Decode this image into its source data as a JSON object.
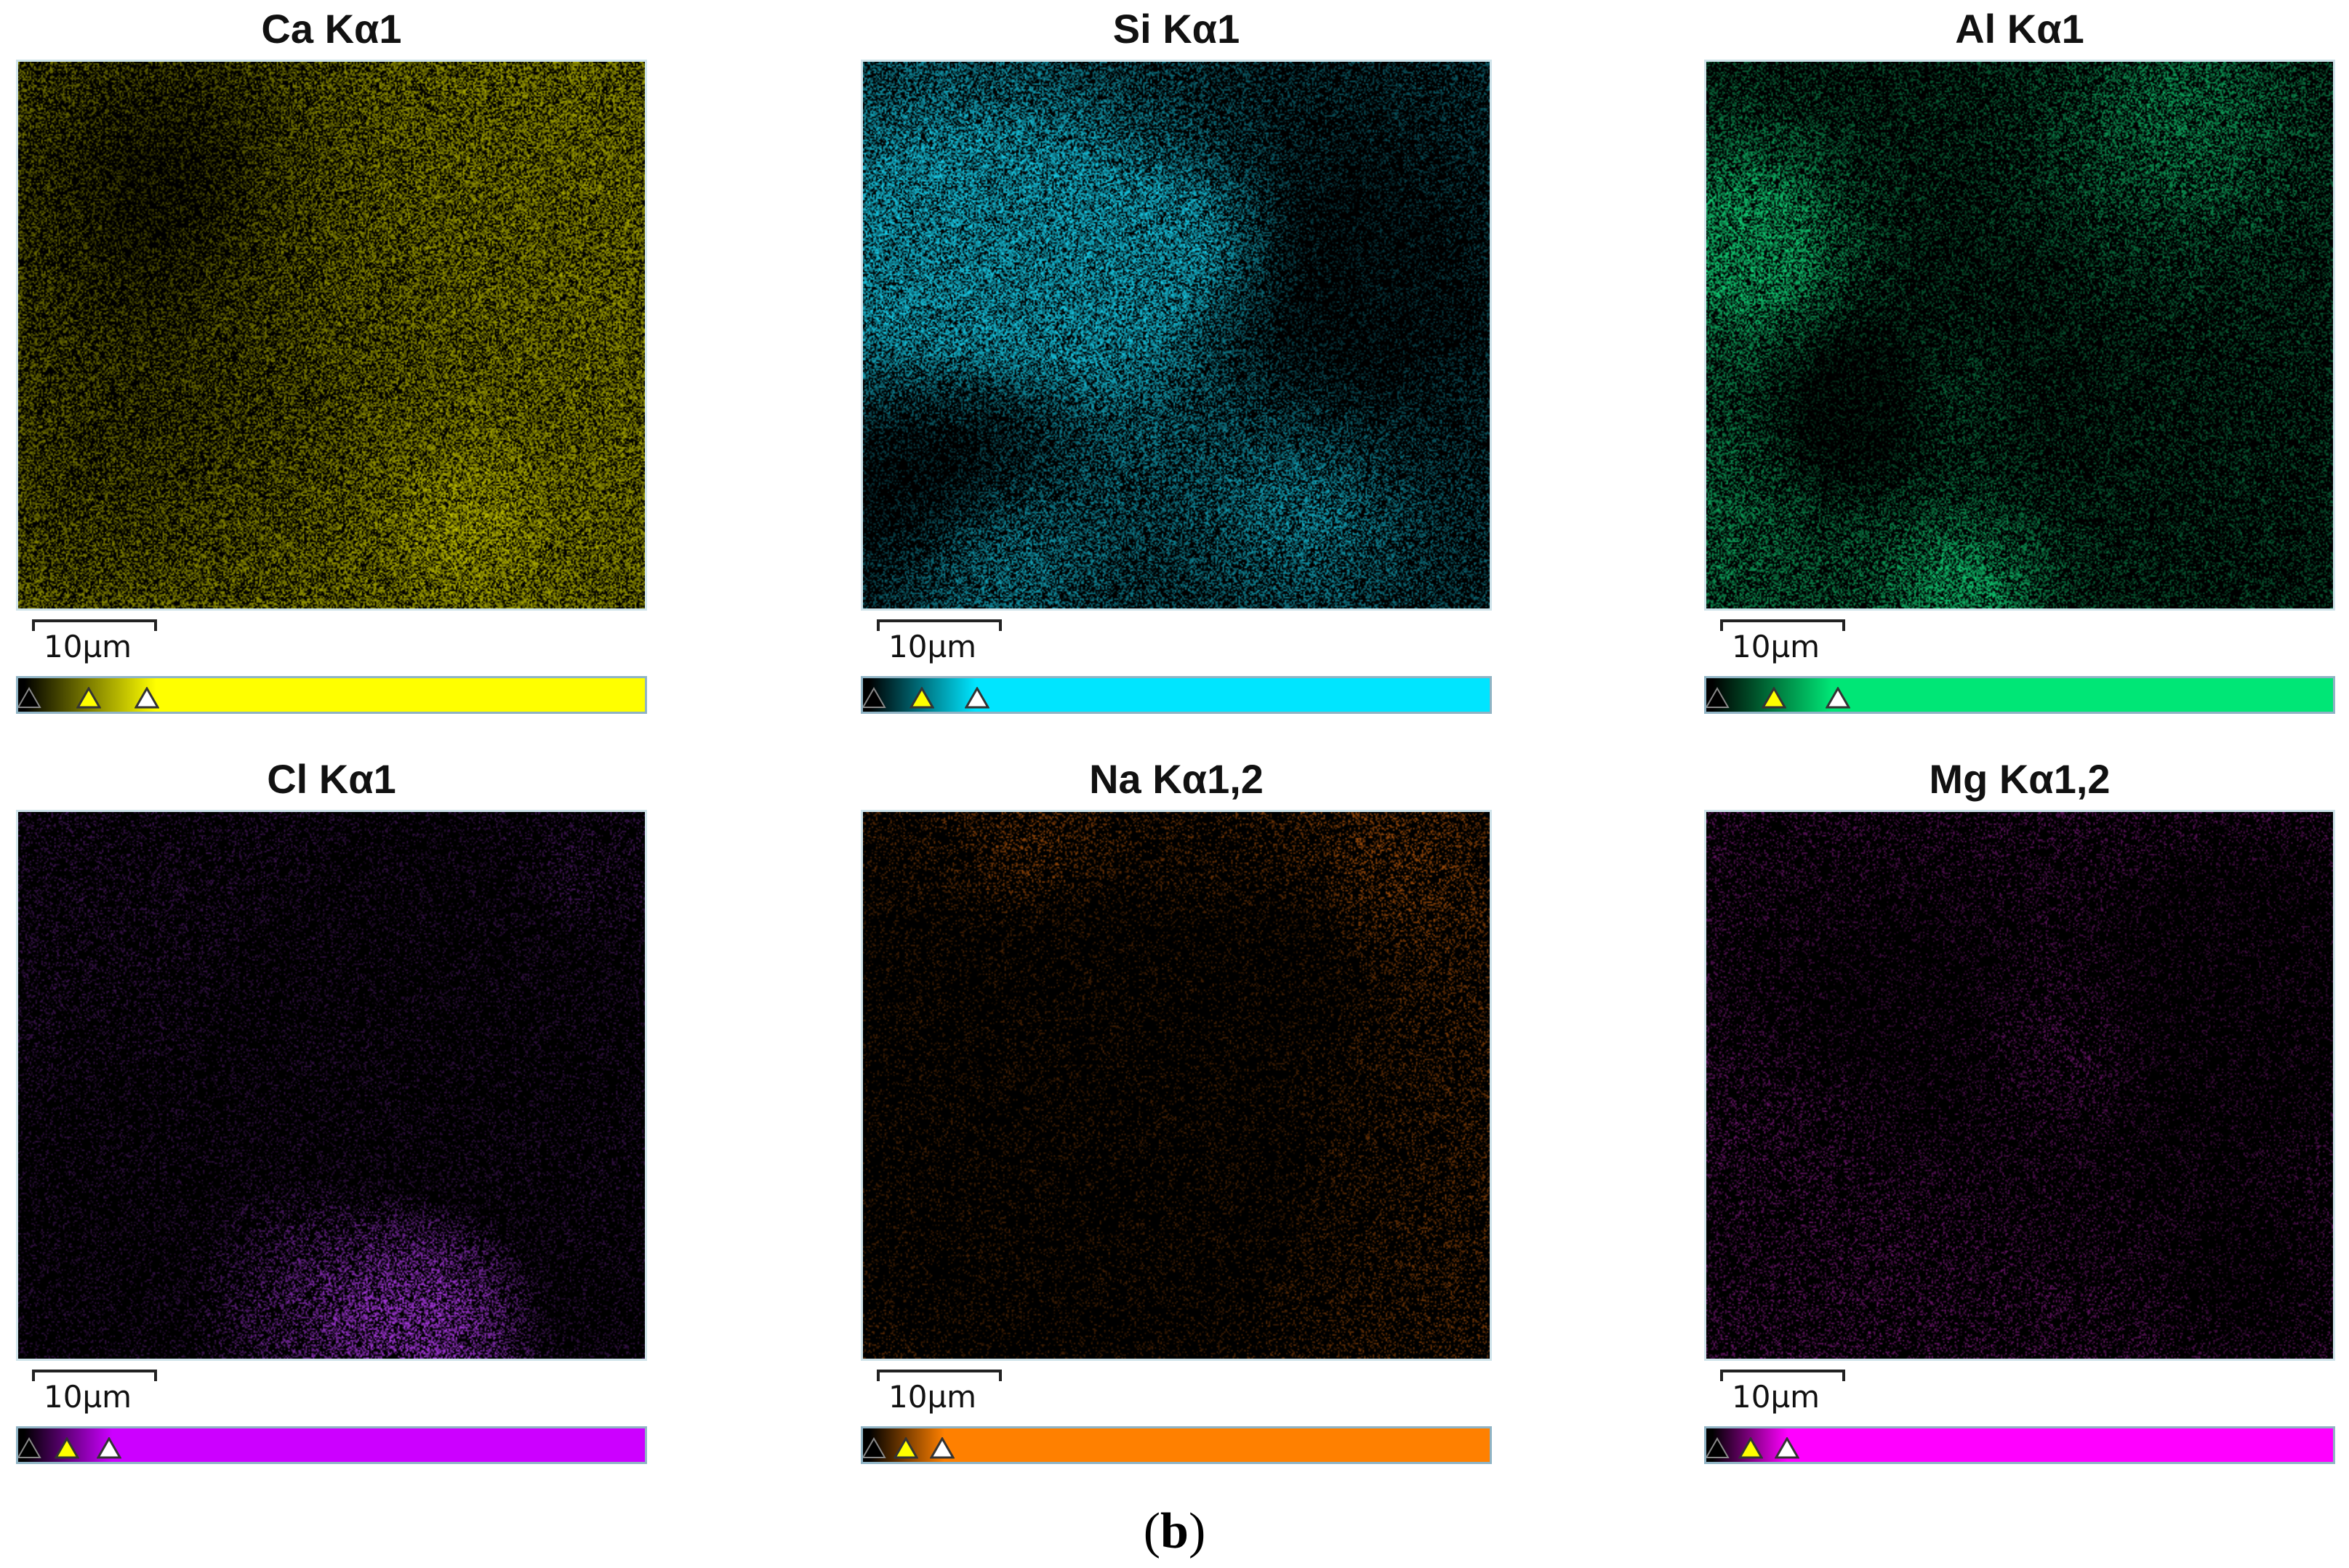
{
  "figure": {
    "caption": {
      "open": "(",
      "letter": "b",
      "close": ")"
    },
    "panels": [
      {
        "element": "Ca Kα1",
        "scale_label": "10µm",
        "color": "#e6e600",
        "bar_color": "#ffff00"
      },
      {
        "element": "Si Kα1",
        "scale_label": "10µm",
        "color": "#19d3f0",
        "bar_color": "#00e5ff"
      },
      {
        "element": "Al Kα1",
        "scale_label": "10µm",
        "color": "#12d67a",
        "bar_color": "#00e676"
      },
      {
        "element": "Cl Kα1",
        "scale_label": "10µm",
        "color": "#b43cf0",
        "bar_color": "#cc00ff"
      },
      {
        "element": "Na Kα1,2",
        "scale_label": "10µm",
        "color": "#ff7a10",
        "bar_color": "#ff8000"
      },
      {
        "element": "Mg Kα1,2",
        "scale_label": "10µm",
        "color": "#e62ee6",
        "bar_color": "#ff00ff"
      }
    ],
    "icons": {
      "low_marker": "black-triangle-icon",
      "mid_marker": "yellow-triangle-icon",
      "high_marker": "white-triangle-icon"
    }
  }
}
